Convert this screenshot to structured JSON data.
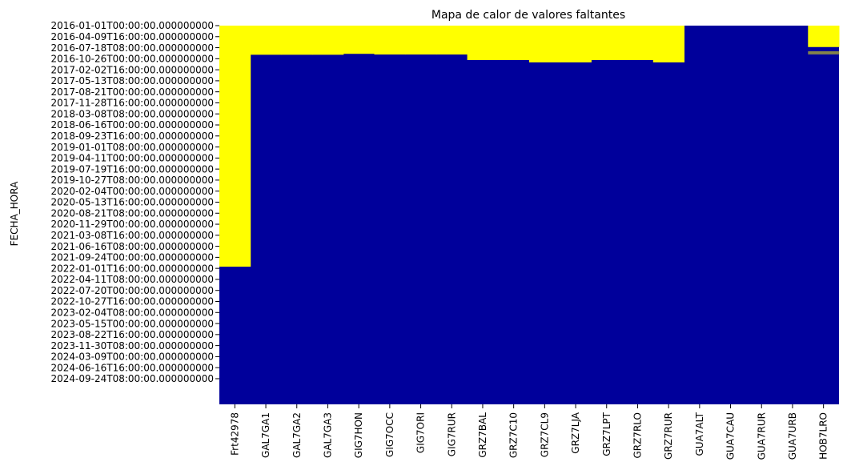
{
  "chart_data": {
    "type": "heatmap",
    "title": "Mapa de calor de valores faltantes",
    "ylabel": "FECHA_HORA",
    "xlabel": "",
    "colors": {
      "missing": "#ffff00",
      "present": "#00009b"
    },
    "colorbar": false,
    "grid": false,
    "x_categories": [
      "Frt42978",
      "GAL7GA1",
      "GAL7GA2",
      "GAL7GA3",
      "GIG7HON",
      "GIG7OCC",
      "GIG7ORI",
      "GIG7RUR",
      "GRZ7BAL",
      "GRZ7C10",
      "GRZ7CL9",
      "GRZ7LJA",
      "GRZ7LPT",
      "GRZ7RLO",
      "GRZ7RUR",
      "GUA7ALT",
      "GUA7CAU",
      "GUA7RUR",
      "GUA7URB",
      "HOB7LRO"
    ],
    "y_tick_labels": [
      "2016-01-01T00:00:00.000000000",
      "2016-04-09T16:00:00.000000000",
      "2016-07-18T08:00:00.000000000",
      "2016-10-26T00:00:00.000000000",
      "2017-02-02T16:00:00.000000000",
      "2017-05-13T08:00:00.000000000",
      "2017-08-21T00:00:00.000000000",
      "2017-11-28T16:00:00.000000000",
      "2018-03-08T08:00:00.000000000",
      "2018-06-16T00:00:00.000000000",
      "2018-09-23T16:00:00.000000000",
      "2019-01-01T08:00:00.000000000",
      "2019-04-11T00:00:00.000000000",
      "2019-07-19T16:00:00.000000000",
      "2019-10-27T08:00:00.000000000",
      "2020-02-04T00:00:00.000000000",
      "2020-05-13T16:00:00.000000000",
      "2020-08-21T08:00:00.000000000",
      "2020-11-29T00:00:00.000000000",
      "2021-03-08T16:00:00.000000000",
      "2021-06-16T08:00:00.000000000",
      "2021-09-24T00:00:00.000000000",
      "2022-01-01T16:00:00.000000000",
      "2022-04-11T08:00:00.000000000",
      "2022-07-20T00:00:00.000000000",
      "2022-10-27T16:00:00.000000000",
      "2023-02-04T08:00:00.000000000",
      "2023-05-15T00:00:00.000000000",
      "2023-08-22T16:00:00.000000000",
      "2023-11-30T08:00:00.000000000",
      "2024-03-09T00:00:00.000000000",
      "2024-06-16T16:00:00.000000000",
      "2024-09-24T08:00:00.000000000"
    ],
    "y_range": [
      "2016-01-01T00:00",
      "2024-12-31T23:00"
    ],
    "missing_periods": [
      {
        "column": "Frt42978",
        "segments": [
          [
            "2016-01-01T00:00",
            "2021-09-24T00:00"
          ]
        ]
      },
      {
        "column": "GAL7GA1",
        "segments": [
          [
            "2016-01-01T00:00",
            "2016-09-10T00:00"
          ]
        ]
      },
      {
        "column": "GAL7GA2",
        "segments": [
          [
            "2016-01-01T00:00",
            "2016-09-10T00:00"
          ]
        ]
      },
      {
        "column": "GAL7GA3",
        "segments": [
          [
            "2016-01-01T00:00",
            "2016-09-10T00:00"
          ]
        ]
      },
      {
        "column": "GIG7HON",
        "segments": [
          [
            "2016-01-01T00:00",
            "2016-09-02T00:00"
          ]
        ]
      },
      {
        "column": "GIG7OCC",
        "segments": [
          [
            "2016-01-01T00:00",
            "2016-09-08T00:00"
          ]
        ]
      },
      {
        "column": "GIG7ORI",
        "segments": [
          [
            "2016-01-01T00:00",
            "2016-09-08T00:00"
          ]
        ]
      },
      {
        "column": "GIG7RUR",
        "segments": [
          [
            "2016-01-01T00:00",
            "2016-09-08T00:00"
          ]
        ]
      },
      {
        "column": "GRZ7BAL",
        "segments": [
          [
            "2016-01-01T00:00",
            "2016-10-26T00:00"
          ]
        ]
      },
      {
        "column": "GRZ7C10",
        "segments": [
          [
            "2016-01-01T00:00",
            "2016-10-26T00:00"
          ]
        ]
      },
      {
        "column": "GRZ7CL9",
        "segments": [
          [
            "2016-01-01T00:00",
            "2016-11-15T00:00"
          ]
        ]
      },
      {
        "column": "GRZ7LJA",
        "segments": [
          [
            "2016-01-01T00:00",
            "2016-11-15T00:00"
          ]
        ]
      },
      {
        "column": "GRZ7LPT",
        "segments": [
          [
            "2016-01-01T00:00",
            "2016-10-26T00:00"
          ]
        ]
      },
      {
        "column": "GRZ7RLO",
        "segments": [
          [
            "2016-01-01T00:00",
            "2016-10-26T00:00"
          ]
        ]
      },
      {
        "column": "GRZ7RUR",
        "segments": [
          [
            "2016-01-01T00:00",
            "2016-11-15T00:00"
          ]
        ]
      },
      {
        "column": "GUA7ALT",
        "segments": []
      },
      {
        "column": "GUA7CAU",
        "segments": []
      },
      {
        "column": "GUA7RUR",
        "segments": []
      },
      {
        "column": "GUA7URB",
        "segments": []
      },
      {
        "column": "HOB7LRO",
        "segments": [
          [
            "2016-01-01T00:00",
            "2016-07-05T00:00"
          ],
          [
            "2016-08-14T00:00",
            "2016-08-21T00:00"
          ],
          [
            "2016-08-28T00:00",
            "2016-09-01T00:00"
          ]
        ]
      }
    ]
  }
}
